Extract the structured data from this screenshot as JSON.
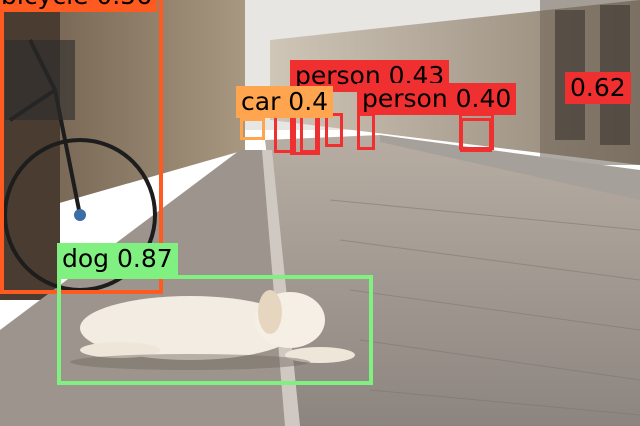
{
  "detections": [
    {
      "label": "bicycle 0.56",
      "color": "#ff5a1f"
    },
    {
      "label": "dog 0.87",
      "color": "#80f080"
    },
    {
      "label": "car 0.4",
      "color": "#ffa54f"
    },
    {
      "label": "person 0.40",
      "color": "#f03030"
    },
    {
      "label": "person 0.43",
      "color": "#f03030"
    },
    {
      "label": "0.62",
      "color": "#f03030"
    },
    {
      "label": "",
      "color": "#f03030"
    },
    {
      "label": "",
      "color": "#f03030"
    },
    {
      "label": "",
      "color": "#f03030"
    },
    {
      "label": "",
      "color": "#f03030"
    }
  ]
}
